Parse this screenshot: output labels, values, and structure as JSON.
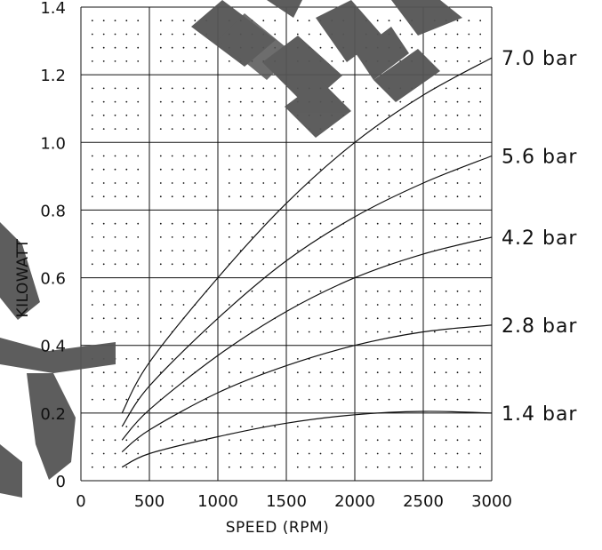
{
  "chart_data": {
    "type": "line",
    "title": "",
    "xlabel": "SPEED (RPM)",
    "ylabel": "KILOWATT",
    "xlim": [
      0,
      3000
    ],
    "ylim": [
      0,
      1.4
    ],
    "x_ticks": [
      0,
      500,
      1000,
      1500,
      2000,
      2500,
      3000
    ],
    "x_tick_labels": [
      "0",
      "500",
      "1000",
      "1500",
      "2000",
      "2500",
      "3000"
    ],
    "y_ticks": [
      0,
      0.2,
      0.4,
      0.6,
      0.8,
      1.0,
      1.2,
      1.4
    ],
    "y_tick_labels": [
      "0",
      "0.2",
      "0.4",
      "0.6",
      "0.8",
      "1.0",
      "1.2",
      "1.4"
    ],
    "grid": true,
    "minor_grid": "dotted",
    "legend": "line-end labels on the right",
    "colors": {
      "line": "#111111",
      "grid": "#111111",
      "watermark": "#555555"
    },
    "series": [
      {
        "name": "7.0 bar",
        "x": [
          300,
          500,
          1000,
          1500,
          2000,
          2500,
          3000
        ],
        "y": [
          0.2,
          0.35,
          0.6,
          0.82,
          1.0,
          1.14,
          1.25
        ]
      },
      {
        "name": "5.6 bar",
        "x": [
          300,
          500,
          1000,
          1500,
          2000,
          2500,
          3000
        ],
        "y": [
          0.16,
          0.28,
          0.48,
          0.65,
          0.78,
          0.88,
          0.96
        ]
      },
      {
        "name": "4.2 bar",
        "x": [
          300,
          500,
          1000,
          1500,
          2000,
          2500,
          3000
        ],
        "y": [
          0.12,
          0.21,
          0.37,
          0.5,
          0.6,
          0.67,
          0.72
        ]
      },
      {
        "name": "2.8 bar",
        "x": [
          300,
          500,
          1000,
          1500,
          2000,
          2500,
          3000
        ],
        "y": [
          0.085,
          0.15,
          0.26,
          0.34,
          0.4,
          0.44,
          0.46
        ]
      },
      {
        "name": "1.4 bar",
        "x": [
          300,
          500,
          1000,
          1500,
          2000,
          2500,
          3000
        ],
        "y": [
          0.04,
          0.08,
          0.13,
          0.17,
          0.195,
          0.205,
          0.2
        ]
      }
    ]
  }
}
